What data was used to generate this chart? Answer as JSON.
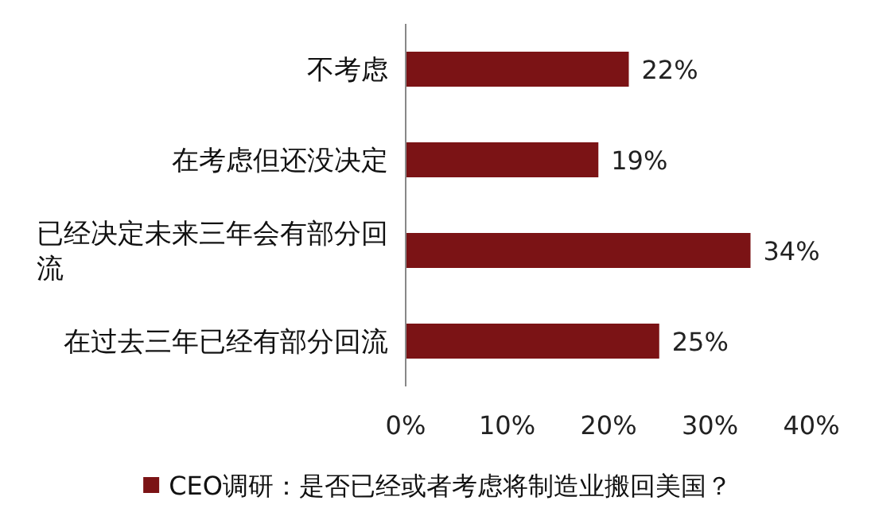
{
  "chart_data": {
    "type": "bar",
    "orientation": "horizontal",
    "categories": [
      "不考虑",
      "在考虑但还没决定",
      "已经决定未来三年会有部分回流",
      "在过去三年已经有部分回流"
    ],
    "series": [
      {
        "name": "CEO调研：是否已经或者考虑将制造业搬回美国？",
        "color": "#7b1315",
        "values": [
          22,
          19,
          34,
          25
        ],
        "value_labels": [
          "22%",
          "19%",
          "34%",
          "25%"
        ]
      }
    ],
    "xlim": [
      0,
      40
    ],
    "xticks": [
      {
        "value": 0,
        "label": "0%"
      },
      {
        "value": 10,
        "label": "10%"
      },
      {
        "value": 20,
        "label": "20%"
      },
      {
        "value": 30,
        "label": "30%"
      },
      {
        "value": 40,
        "label": "40%"
      }
    ],
    "grid": false,
    "legend": "bottom"
  }
}
